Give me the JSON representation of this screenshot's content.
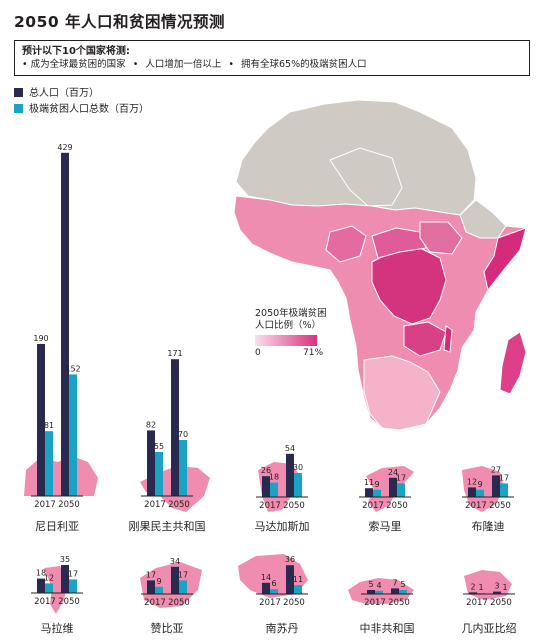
{
  "title": "2050 年人口和贫困情况预测",
  "note": {
    "heading": "预计以下10个国家将测:",
    "bullets": [
      "成为全球最贫困的国家",
      "人口增加一倍以上",
      "拥有全球65%的极端贫困人口"
    ]
  },
  "legend": {
    "pop_label": "总人口（百万）",
    "poor_label": "极端贫困人口总数（百万）"
  },
  "scale": {
    "label_line1": "2050年极端贫困",
    "label_line2": "人口比例（%）",
    "min_label": "0",
    "max_label": "71%"
  },
  "colors": {
    "population": "#2a2950",
    "poverty": "#1ba3c6",
    "map_grey": "#cfcac3",
    "map_pink": "#ee86ab"
  },
  "chart_data": {
    "type": "bar",
    "series": [
      {
        "name": "总人口（百万）",
        "values": [
          190,
          429,
          82,
          171,
          26,
          54,
          11,
          24,
          12,
          27,
          18,
          35,
          17,
          34,
          14,
          36,
          5,
          7,
          2,
          3
        ]
      },
      {
        "name": "极端贫困人口总数（百万）",
        "values": [
          81,
          152,
          55,
          70,
          18,
          30,
          9,
          17,
          9,
          17,
          12,
          17,
          9,
          17,
          6,
          11,
          4,
          5,
          1,
          1
        ]
      }
    ],
    "countries": [
      {
        "name": "尼日利亚",
        "years": [
          "2017",
          "2050"
        ],
        "population": [
          190,
          429
        ],
        "poverty": [
          81,
          152
        ]
      },
      {
        "name": "刚果民主共和国",
        "years": [
          "2017",
          "2050"
        ],
        "population": [
          82,
          171
        ],
        "poverty": [
          55,
          70
        ]
      },
      {
        "name": "马达加斯加",
        "years": [
          "2017",
          "2050"
        ],
        "population": [
          26,
          54
        ],
        "poverty": [
          18,
          30
        ]
      },
      {
        "name": "索马里",
        "years": [
          "2017",
          "2050"
        ],
        "population": [
          11,
          24
        ],
        "poverty": [
          9,
          17
        ]
      },
      {
        "name": "布隆迪",
        "years": [
          "2017",
          "2050"
        ],
        "population": [
          12,
          27
        ],
        "poverty": [
          9,
          17
        ]
      },
      {
        "name": "马拉维",
        "years": [
          "2017",
          "2050"
        ],
        "population": [
          18,
          35
        ],
        "poverty": [
          12,
          17
        ]
      },
      {
        "name": "赞比亚",
        "years": [
          "2017",
          "2050"
        ],
        "population": [
          17,
          34
        ],
        "poverty": [
          9,
          17
        ]
      },
      {
        "name": "南苏丹",
        "years": [
          "2017",
          "2050"
        ],
        "population": [
          14,
          36
        ],
        "poverty": [
          6,
          11
        ]
      },
      {
        "name": "中非共和国",
        "years": [
          "2017",
          "2050"
        ],
        "population": [
          5,
          7
        ],
        "poverty": [
          4,
          5
        ]
      },
      {
        "name": "几内亚比绍",
        "years": [
          "2017",
          "2050"
        ],
        "population": [
          2,
          3
        ],
        "poverty": [
          1,
          1
        ]
      }
    ]
  }
}
